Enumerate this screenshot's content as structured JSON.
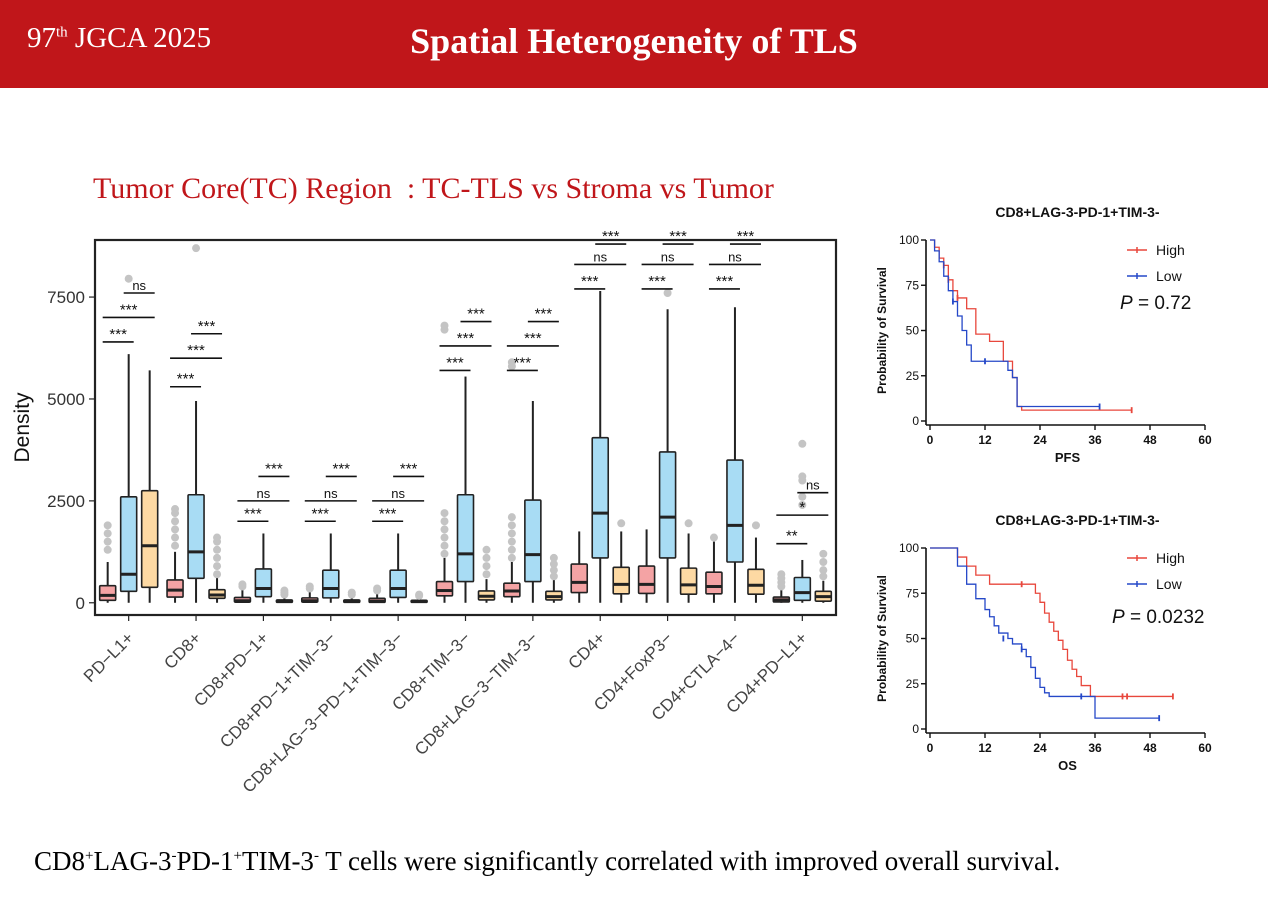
{
  "header": {
    "conf_prefix": "97",
    "conf_sup": "th",
    "conf_suffix": " JGCA 2025",
    "title": "Spatial Heterogeneity of TLS"
  },
  "section_title": "Tumor Core(TC) Region  : TC-TLS vs Stroma vs Tumor",
  "caption": {
    "parts": [
      "CD8",
      "+",
      "LAG-3",
      "-",
      "PD-1",
      "+",
      "TIM-3",
      "-",
      " T cells were significantly correlated with improved overall survival."
    ]
  },
  "chart_data": [
    {
      "type": "box",
      "ylabel": "Density",
      "xlabel": "",
      "ylim": [
        -300,
        8900
      ],
      "yticks": [
        0,
        2500,
        5000,
        7500
      ],
      "group_colors": [
        "#f4a3a4",
        "#a8dcf4",
        "#fdd9a3"
      ],
      "groups": [
        "TC-TLS",
        "Stroma",
        "Tumor"
      ],
      "categories": [
        "PD−L1+",
        "CD8+",
        "CD8+PD−1+",
        "CD8+PD−1+TIM−3−",
        "CD8+LAG−3−PD−1+TIM−3−",
        "CD8+TIM−3−",
        "CD8+LAG−3−TIM−3−",
        "CD4+",
        "CD4+FoxP3−",
        "CD4+CTLA−4−",
        "CD4+PD−L1+"
      ],
      "boxes": [
        [
          [
            0,
            60,
            180,
            420,
            1000
          ],
          [
            0,
            280,
            700,
            2600,
            6100
          ],
          [
            0,
            380,
            1400,
            2750,
            5700
          ]
        ],
        [
          [
            0,
            140,
            310,
            560,
            1250
          ],
          [
            0,
            600,
            1250,
            2650,
            4950
          ],
          [
            0,
            110,
            190,
            320,
            660
          ]
        ],
        [
          [
            0,
            15,
            50,
            130,
            320
          ],
          [
            0,
            150,
            350,
            830,
            1700
          ],
          [
            0,
            10,
            30,
            70,
            160
          ]
        ],
        [
          [
            0,
            15,
            50,
            120,
            300
          ],
          [
            0,
            120,
            350,
            800,
            1700
          ],
          [
            0,
            10,
            30,
            70,
            160
          ]
        ],
        [
          [
            0,
            10,
            40,
            110,
            260
          ],
          [
            0,
            130,
            350,
            800,
            1700
          ],
          [
            0,
            10,
            30,
            60,
            140
          ]
        ],
        [
          [
            0,
            170,
            300,
            520,
            1100
          ],
          [
            0,
            520,
            1200,
            2650,
            5550
          ],
          [
            0,
            70,
            160,
            290,
            580
          ]
        ],
        [
          [
            0,
            150,
            290,
            480,
            1000
          ],
          [
            0,
            520,
            1180,
            2520,
            4950
          ],
          [
            0,
            70,
            150,
            280,
            560
          ]
        ],
        [
          [
            0,
            250,
            500,
            950,
            1750
          ],
          [
            0,
            1100,
            2200,
            4050,
            7650
          ],
          [
            0,
            220,
            450,
            870,
            1750
          ]
        ],
        [
          [
            0,
            230,
            450,
            900,
            1800
          ],
          [
            0,
            1100,
            2100,
            3700,
            7200
          ],
          [
            0,
            210,
            440,
            850,
            1700
          ]
        ],
        [
          [
            0,
            220,
            400,
            750,
            1500
          ],
          [
            0,
            1000,
            1900,
            3500,
            7250
          ],
          [
            0,
            210,
            430,
            820,
            1600
          ]
        ],
        [
          [
            0,
            20,
            70,
            140,
            320
          ],
          [
            0,
            60,
            250,
            620,
            1050
          ],
          [
            0,
            40,
            150,
            280,
            540
          ]
        ]
      ],
      "outliers": [
        [
          [
            1300,
            1500,
            1700,
            1900
          ],
          [
            7950
          ],
          []
        ],
        [
          [
            1400,
            1600,
            1800,
            2000,
            2200,
            2300
          ],
          [
            8700
          ],
          [
            700,
            900,
            1100,
            1300,
            1500,
            1600
          ]
        ],
        [
          [
            400,
            450
          ],
          [],
          [
            200,
            250,
            300
          ]
        ],
        [
          [
            350,
            400
          ],
          [],
          [
            200,
            250
          ]
        ],
        [
          [
            300,
            350
          ],
          [],
          [
            170,
            200
          ]
        ],
        [
          [
            1200,
            1400,
            1600,
            1800,
            2000,
            2200,
            6700,
            6800
          ],
          [],
          [
            700,
            900,
            1100,
            1300
          ]
        ],
        [
          [
            1100,
            1300,
            1500,
            1700,
            1900,
            2100,
            5800,
            5900
          ],
          [],
          [
            650,
            800,
            950,
            1100
          ]
        ],
        [
          [],
          [],
          [
            1950
          ]
        ],
        [
          [],
          [
            7600
          ],
          [
            1950
          ]
        ],
        [
          [
            1600
          ],
          [],
          [
            1900
          ]
        ],
        [
          [
            400,
            500,
            600,
            700
          ],
          [
            2400,
            2600,
            3000,
            3100,
            3900
          ],
          [
            650,
            800,
            1000,
            1200
          ]
        ]
      ],
      "significance": [
        [
          {
            "label": "***",
            "a": 0,
            "b": 1,
            "y": 6400
          },
          {
            "label": "***",
            "a": 0,
            "b": 2,
            "y": 7000
          },
          {
            "label": "ns",
            "a": 1,
            "b": 2,
            "y": 7600
          }
        ],
        [
          {
            "label": "***",
            "a": 0,
            "b": 1,
            "y": 5300
          },
          {
            "label": "***",
            "a": 0,
            "b": 2,
            "y": 6000
          },
          {
            "label": "***",
            "a": 1,
            "b": 2,
            "y": 6600
          }
        ],
        [
          {
            "label": "***",
            "a": 0,
            "b": 1,
            "y": 2000
          },
          {
            "label": "ns",
            "a": 0,
            "b": 2,
            "y": 2500
          },
          {
            "label": "***",
            "a": 1,
            "b": 2,
            "y": 3100
          }
        ],
        [
          {
            "label": "***",
            "a": 0,
            "b": 1,
            "y": 2000
          },
          {
            "label": "ns",
            "a": 0,
            "b": 2,
            "y": 2500
          },
          {
            "label": "***",
            "a": 1,
            "b": 2,
            "y": 3100
          }
        ],
        [
          {
            "label": "***",
            "a": 0,
            "b": 1,
            "y": 2000
          },
          {
            "label": "ns",
            "a": 0,
            "b": 2,
            "y": 2500
          },
          {
            "label": "***",
            "a": 1,
            "b": 2,
            "y": 3100
          }
        ],
        [
          {
            "label": "***",
            "a": 0,
            "b": 1,
            "y": 5700
          },
          {
            "label": "***",
            "a": 0,
            "b": 2,
            "y": 6300
          },
          {
            "label": "***",
            "a": 1,
            "b": 2,
            "y": 6900
          }
        ],
        [
          {
            "label": "***",
            "a": 0,
            "b": 1,
            "y": 5700
          },
          {
            "label": "***",
            "a": 0,
            "b": 2,
            "y": 6300
          },
          {
            "label": "***",
            "a": 1,
            "b": 2,
            "y": 6900
          }
        ],
        [
          {
            "label": "***",
            "a": 0,
            "b": 1,
            "y": 7700
          },
          {
            "label": "ns",
            "a": 0,
            "b": 2,
            "y": 8300
          },
          {
            "label": "***",
            "a": 1,
            "b": 2,
            "y": 8800
          }
        ],
        [
          {
            "label": "***",
            "a": 0,
            "b": 1,
            "y": 7700
          },
          {
            "label": "ns",
            "a": 0,
            "b": 2,
            "y": 8300
          },
          {
            "label": "***",
            "a": 1,
            "b": 2,
            "y": 8800
          }
        ],
        [
          {
            "label": "***",
            "a": 0,
            "b": 1,
            "y": 7700
          },
          {
            "label": "ns",
            "a": 0,
            "b": 2,
            "y": 8300
          },
          {
            "label": "***",
            "a": 1,
            "b": 2,
            "y": 8800
          }
        ],
        [
          {
            "label": "**",
            "a": 0,
            "b": 1,
            "y": 1450
          },
          {
            "label": "*",
            "a": 0,
            "b": 2,
            "y": 2150
          },
          {
            "label": "ns",
            "a": 1,
            "b": 2,
            "y": 2700
          }
        ]
      ]
    },
    {
      "type": "line",
      "title": "CD8+LAG-3-PD-1+TIM-3-",
      "xlabel": "PFS",
      "ylabel": "Probability of Survival",
      "xlim": [
        0,
        60
      ],
      "ylim": [
        0,
        100
      ],
      "xticks": [
        0,
        12,
        24,
        36,
        48,
        60
      ],
      "yticks": [
        0,
        25,
        50,
        75,
        100
      ],
      "p_label": "P",
      "p_value": " = 0.72",
      "series": [
        {
          "name": "High",
          "color": "#e8473c",
          "steps": [
            [
              0,
              100
            ],
            [
              1,
              96
            ],
            [
              2,
              90
            ],
            [
              3,
              86
            ],
            [
              4,
              78
            ],
            [
              5,
              72
            ],
            [
              6,
              68
            ],
            [
              8,
              62
            ],
            [
              10,
              48
            ],
            [
              13,
              44
            ],
            [
              16,
              33
            ],
            [
              18,
              24
            ],
            [
              19,
              8
            ],
            [
              20,
              6
            ],
            [
              44,
              6
            ]
          ],
          "censor": [
            [
              3,
              86
            ],
            [
              4,
              78
            ],
            [
              6,
              68
            ],
            [
              44,
              6
            ]
          ]
        },
        {
          "name": "Low",
          "color": "#2548c8",
          "steps": [
            [
              0,
              100
            ],
            [
              1,
              94
            ],
            [
              2,
              88
            ],
            [
              3,
              80
            ],
            [
              4,
              72
            ],
            [
              5,
              66
            ],
            [
              6,
              58
            ],
            [
              7,
              50
            ],
            [
              8,
              42
            ],
            [
              9,
              33
            ],
            [
              12,
              33
            ],
            [
              17,
              28
            ],
            [
              18,
              24
            ],
            [
              19,
              8
            ],
            [
              37,
              8
            ]
          ],
          "censor": [
            [
              5,
              66
            ],
            [
              12,
              33
            ],
            [
              37,
              8
            ]
          ]
        }
      ]
    },
    {
      "type": "line",
      "title": "CD8+LAG-3-PD-1+TIM-3-",
      "xlabel": "OS",
      "ylabel": "Probability of Survival",
      "xlim": [
        0,
        60
      ],
      "ylim": [
        0,
        100
      ],
      "xticks": [
        0,
        12,
        24,
        36,
        48,
        60
      ],
      "yticks": [
        0,
        25,
        50,
        75,
        100
      ],
      "p_label": "P",
      "p_value": " = 0.0232",
      "series": [
        {
          "name": "High",
          "color": "#e8473c",
          "steps": [
            [
              0,
              100
            ],
            [
              5,
              100
            ],
            [
              6,
              95
            ],
            [
              8,
              90
            ],
            [
              10,
              85
            ],
            [
              13,
              80
            ],
            [
              22,
              80
            ],
            [
              23,
              75
            ],
            [
              24,
              70
            ],
            [
              25,
              64
            ],
            [
              26,
              59
            ],
            [
              27,
              54
            ],
            [
              28,
              49
            ],
            [
              29,
              44
            ],
            [
              30,
              38
            ],
            [
              31,
              33
            ],
            [
              32,
              29
            ],
            [
              33,
              24
            ],
            [
              35,
              18
            ],
            [
              53,
              18
            ]
          ],
          "censor": [
            [
              20,
              80
            ],
            [
              42,
              18
            ],
            [
              43,
              18
            ],
            [
              53,
              18
            ]
          ]
        },
        {
          "name": "Low",
          "color": "#2548c8",
          "steps": [
            [
              0,
              100
            ],
            [
              5,
              100
            ],
            [
              6,
              90
            ],
            [
              8,
              80
            ],
            [
              10,
              72
            ],
            [
              12,
              66
            ],
            [
              13,
              62
            ],
            [
              14,
              57
            ],
            [
              15,
              53
            ],
            [
              17,
              50
            ],
            [
              18,
              47
            ],
            [
              20,
              44
            ],
            [
              21,
              40
            ],
            [
              22,
              34
            ],
            [
              23,
              28
            ],
            [
              24,
              23
            ],
            [
              25,
              20
            ],
            [
              26,
              18
            ],
            [
              35,
              18
            ],
            [
              36,
              6
            ],
            [
              50,
              6
            ]
          ],
          "censor": [
            [
              16,
              50
            ],
            [
              20,
              44
            ],
            [
              33,
              18
            ],
            [
              50,
              6
            ]
          ]
        }
      ]
    }
  ]
}
